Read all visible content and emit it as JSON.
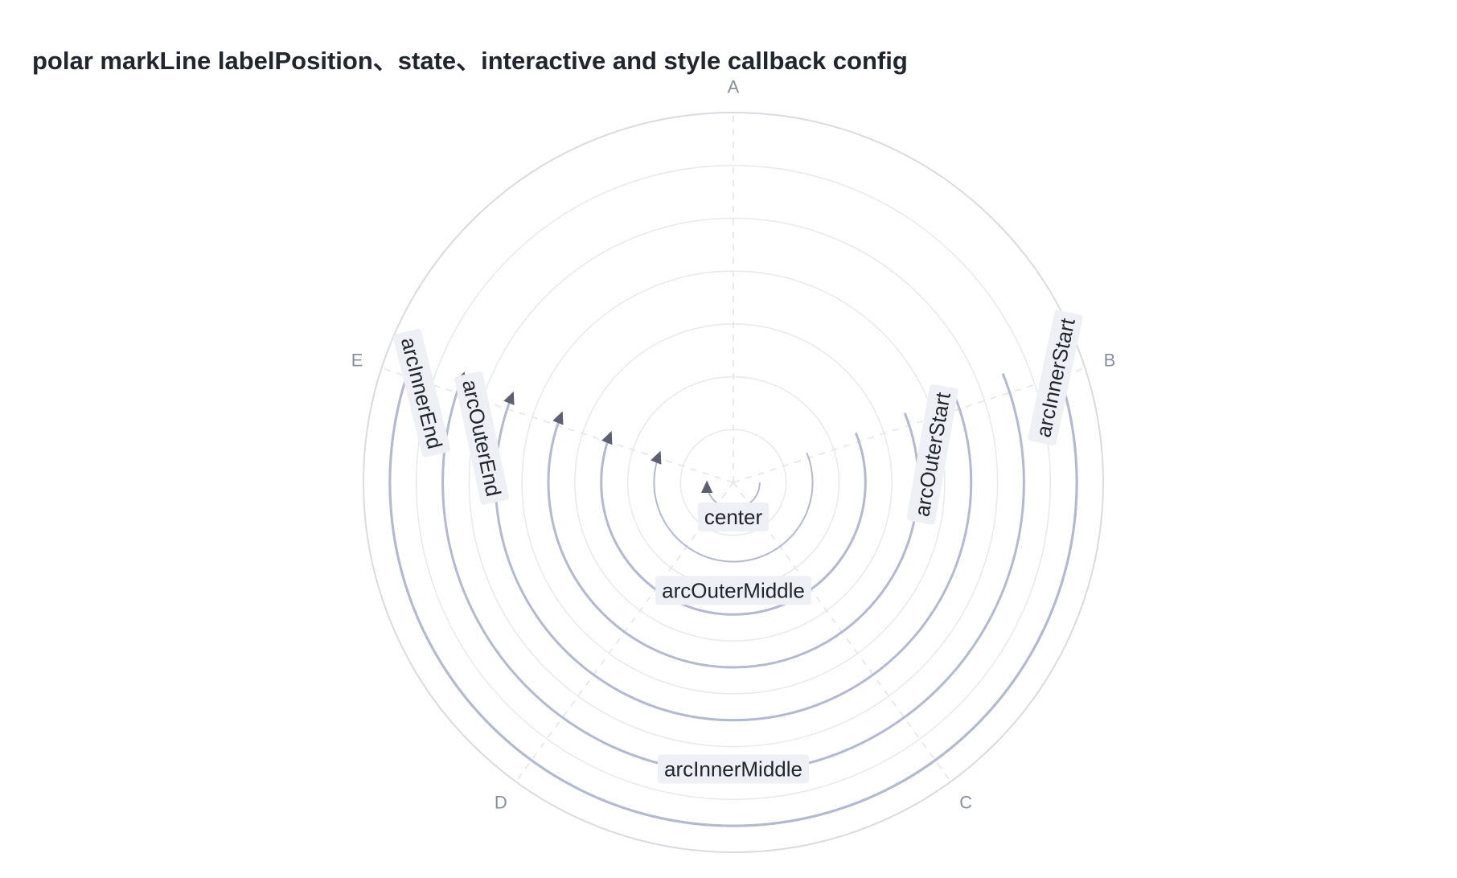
{
  "title": "polar markLine labelPosition、state、interactive and style callback config",
  "colors": {
    "grid": "#e8e9ed",
    "grid_outer": "#d9dbe0",
    "axis_dash": "#e2e4e8",
    "mark_line": "#b3bacf",
    "arrow": "#5b6170",
    "label_bg": "#eef0f5",
    "label_text": "#21252c",
    "axis_label": "#89909d"
  },
  "chart_data": {
    "type": "polar",
    "angle_categories": [
      "A",
      "B",
      "C",
      "D",
      "E"
    ],
    "radius_range": [
      0,
      7
    ],
    "grid_rings": [
      1,
      2,
      3,
      4,
      5,
      6,
      7
    ],
    "grid": true,
    "mark_lines": [
      {
        "label": "center",
        "label_position": "center",
        "radius": 0.5
      },
      {
        "label": "",
        "radius": 1.5
      },
      {
        "label": "arcOuterMiddle",
        "label_position": "arcOuterMiddle",
        "radius": 2.5
      },
      {
        "label": "arcOuterStart",
        "label_position": "arcOuterStart",
        "radius": 3.5
      },
      {
        "label": "arcOuterEnd",
        "label_position": "arcOuterEnd",
        "radius": 4.5
      },
      {
        "label": "arcInnerMiddle",
        "label_position": "arcInnerMiddle",
        "radius": 5.5
      },
      {
        "label": "arcInnerEnd",
        "label_position": "arcInnerEnd",
        "radius": 6.5
      },
      {
        "label": "arcInnerStart",
        "label_position": "arcInnerStart",
        "radius": 6.5
      }
    ]
  }
}
